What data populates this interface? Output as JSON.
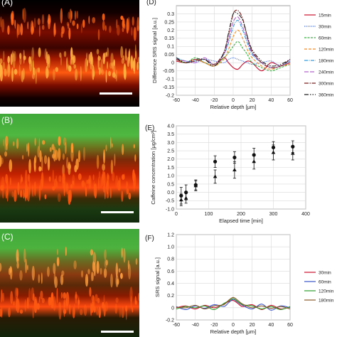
{
  "panels": {
    "a": "(A)",
    "b": "(B)",
    "c": "(C)",
    "d": "(D)",
    "e": "(E)",
    "f": "(F)"
  },
  "colors": {
    "background": "#ffffff",
    "srs_hot": "#ff3b12",
    "green_channel": "#3fa83a",
    "scalebar": "#ffffff"
  },
  "chart_data": [
    {
      "id": "D",
      "type": "line",
      "xlabel": "Relative depth [μm]",
      "ylabel": "Difference SRS signal [a.u.]",
      "xlim": [
        -60,
        60
      ],
      "ylim": [
        -0.2,
        0.35
      ],
      "xticks": [
        -60,
        -40,
        -20,
        0,
        20,
        40,
        60
      ],
      "yticks": [
        -0.2,
        -0.15,
        -0.1,
        -0.05,
        0,
        0.05,
        0.1,
        0.15,
        0.2,
        0.25,
        0.3
      ],
      "grid": true,
      "legend": "right",
      "x": [
        -60,
        -50,
        -40,
        -30,
        -20,
        -10,
        -5,
        0,
        5,
        10,
        15,
        20,
        30,
        40,
        50,
        60
      ],
      "series": [
        {
          "name": "15min",
          "color": "#c8102e",
          "dash": "",
          "values": [
            0.01,
            0.0,
            0.02,
            0.0,
            -0.02,
            0.03,
            0.0,
            -0.03,
            -0.04,
            -0.01,
            0.01,
            0.0,
            -0.05,
            0.0,
            -0.02,
            0.0
          ]
        },
        {
          "name": "30min",
          "color": "#4a6fd8",
          "dash": "1.2,1.2",
          "values": [
            0.02,
            0.01,
            0.0,
            0.02,
            0.01,
            0.0,
            0.02,
            0.03,
            0.02,
            0.01,
            0.0,
            -0.01,
            0.0,
            0.01,
            -0.02,
            0.01
          ]
        },
        {
          "name": "60min",
          "color": "#3cb043",
          "dash": "3,1.5",
          "values": [
            0.02,
            0.0,
            0.03,
            0.0,
            -0.02,
            0.03,
            0.06,
            0.1,
            0.13,
            0.09,
            0.05,
            0.0,
            -0.03,
            -0.05,
            -0.03,
            -0.01
          ]
        },
        {
          "name": "120min",
          "color": "#f28c28",
          "dash": "4,2",
          "values": [
            0.03,
            0.0,
            0.02,
            0.0,
            -0.02,
            0.02,
            0.08,
            0.16,
            0.2,
            0.15,
            0.08,
            0.03,
            -0.02,
            -0.04,
            -0.02,
            -0.01
          ]
        },
        {
          "name": "180min",
          "color": "#3a9ad9",
          "dash": "5,1.5,1,1.5",
          "values": [
            0.03,
            0.01,
            0.01,
            0.02,
            -0.01,
            0.05,
            0.12,
            0.22,
            0.26,
            0.2,
            0.12,
            0.05,
            0.0,
            -0.03,
            -0.02,
            0.01
          ]
        },
        {
          "name": "240min",
          "color": "#b065c9",
          "dash": "6,2",
          "values": [
            0.02,
            0.01,
            0.0,
            0.03,
            -0.01,
            0.05,
            0.14,
            0.25,
            0.28,
            0.22,
            0.14,
            0.06,
            0.0,
            -0.03,
            -0.02,
            0.02
          ]
        },
        {
          "name": "300min",
          "color": "#7a1e1e",
          "dash": "6,1.5,1.5,1.5",
          "values": [
            0.02,
            0.0,
            0.01,
            0.02,
            -0.01,
            0.06,
            0.17,
            0.3,
            0.32,
            0.27,
            0.16,
            0.07,
            0.0,
            -0.03,
            -0.02,
            0.02
          ]
        },
        {
          "name": "360min",
          "color": "#222222",
          "dash": "6,2,1.5,2,1.5,2",
          "values": [
            0.03,
            0.0,
            0.02,
            0.02,
            -0.02,
            0.06,
            0.18,
            0.3,
            0.3,
            0.26,
            0.16,
            0.08,
            0.01,
            -0.02,
            -0.01,
            0.02
          ]
        }
      ]
    },
    {
      "id": "E",
      "type": "scatter",
      "xlabel": "Elapsed time [min]",
      "ylabel": "Caffeine concentration [μg/cm²]",
      "xlim": [
        0,
        400
      ],
      "ylim": [
        -1.0,
        4.0
      ],
      "xticks": [
        0,
        100,
        200,
        300,
        400
      ],
      "yticks": [
        -1.0,
        -0.5,
        0.0,
        0.5,
        1.0,
        1.5,
        2.0,
        2.5,
        3.0,
        3.5,
        4.0
      ],
      "grid": true,
      "series": [
        {
          "marker": "circle",
          "x": [
            15,
            30,
            60,
            120,
            180,
            240,
            300,
            360
          ],
          "values": [
            -0.2,
            0.0,
            0.45,
            1.85,
            2.1,
            2.25,
            2.7,
            2.75
          ],
          "err": [
            0.5,
            0.45,
            0.3,
            0.35,
            0.35,
            0.4,
            0.35,
            0.35
          ]
        },
        {
          "marker": "triangle",
          "x": [
            15,
            30,
            60,
            120,
            180,
            240,
            300,
            360
          ],
          "values": [
            -0.45,
            -0.35,
            0.4,
            0.95,
            1.35,
            1.85,
            2.4,
            2.35
          ],
          "err": [
            0.35,
            0.3,
            0.3,
            0.4,
            0.5,
            0.45,
            0.45,
            0.4
          ]
        }
      ]
    },
    {
      "id": "F",
      "type": "line",
      "xlabel": "Relative depth [μm]",
      "ylabel": "SRS signal [a.u.]",
      "xlim": [
        -60,
        60
      ],
      "ylim": [
        -0.2,
        1.2
      ],
      "xticks": [
        -60,
        -40,
        -20,
        0,
        20,
        40,
        60
      ],
      "yticks": [
        -0.2,
        0,
        0.2,
        0.4,
        0.6,
        0.8,
        1.0,
        1.2
      ],
      "grid": true,
      "legend": "right",
      "x": [
        -60,
        -50,
        -40,
        -30,
        -20,
        -10,
        -5,
        0,
        5,
        10,
        20,
        30,
        40,
        50,
        60
      ],
      "series": [
        {
          "name": "30min",
          "color": "#c8102e",
          "values": [
            0.0,
            0.03,
            -0.02,
            0.04,
            0.0,
            0.06,
            0.1,
            0.12,
            0.07,
            0.02,
            0.05,
            -0.03,
            0.04,
            -0.02,
            0.01
          ]
        },
        {
          "name": "60min",
          "color": "#3a55c8",
          "values": [
            0.02,
            -0.03,
            0.03,
            -0.01,
            0.05,
            0.02,
            0.08,
            0.14,
            0.09,
            0.04,
            -0.02,
            0.06,
            -0.04,
            0.03,
            0.0
          ]
        },
        {
          "name": "120min",
          "color": "#2e9d2e",
          "values": [
            -0.02,
            0.02,
            0.0,
            0.03,
            -0.03,
            0.07,
            0.11,
            0.15,
            0.1,
            0.05,
            0.03,
            -0.02,
            0.02,
            -0.03,
            0.02
          ]
        },
        {
          "name": "180min",
          "color": "#8a5a2b",
          "values": [
            0.01,
            0.0,
            0.04,
            -0.02,
            0.03,
            0.05,
            0.12,
            0.17,
            0.12,
            0.06,
            0.0,
            0.03,
            -0.01,
            0.02,
            -0.02
          ]
        }
      ]
    }
  ]
}
